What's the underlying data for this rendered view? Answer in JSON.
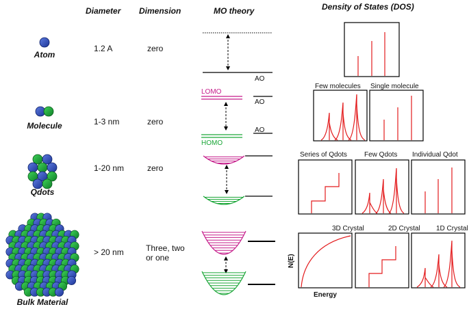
{
  "headers": {
    "diameter": "Diameter",
    "dimension": "Dimension",
    "mo_theory": "MO theory",
    "dos": "Density of States (DOS)"
  },
  "rows": [
    {
      "label": "Atom",
      "diameter": "1.2 A",
      "dimension": "zero"
    },
    {
      "label": "Molecule",
      "diameter": "1-3 nm",
      "dimension": "zero"
    },
    {
      "label": "Qdots",
      "diameter": "1-20 nm",
      "dimension": "zero"
    },
    {
      "label": "Bulk Material",
      "diameter": "> 20 nm",
      "dimension_line1": "Three, two",
      "dimension_line2": "or one"
    }
  ],
  "mo_labels": {
    "ao_1": "AO",
    "lomo": "LOMO",
    "ao_2": "AO",
    "ao_3": "AO",
    "homo": "HOMO"
  },
  "dos_panels": {
    "few_molecules": "Few molecules",
    "single_molecule": "Single molecule",
    "series_qdots": "Series of Qdots",
    "few_qdots": "Few Qdots",
    "individual_qdot": "Individual Qdot",
    "crystal_3d": "3D Crystal",
    "crystal_2d": "2D Crystal",
    "crystal_1d": "1D Crystal"
  },
  "axes": {
    "y": "N(E)",
    "x": "Energy"
  },
  "colors": {
    "atom_blue": "#2b4cb3",
    "atom_green": "#1aa637",
    "lomo_magenta": "#c51b8a",
    "homo_green": "#1aa637",
    "dos_red": "#e31a1c"
  }
}
